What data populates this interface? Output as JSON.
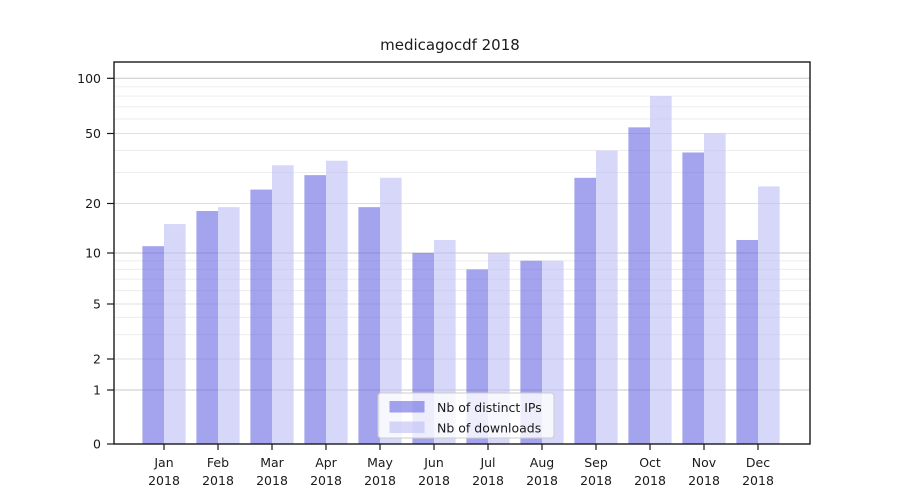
{
  "title": "medicagocdf 2018",
  "chart_data": {
    "type": "bar",
    "title": "medicagocdf 2018",
    "categories": [
      "Jan",
      "Feb",
      "Mar",
      "Apr",
      "May",
      "Jun",
      "Jul",
      "Aug",
      "Sep",
      "Oct",
      "Nov",
      "Dec"
    ],
    "x_year_label": "2018",
    "series": [
      {
        "name": "Nb of distinct IPs",
        "color": "rgba(107,107,228,0.62)",
        "values": [
          11,
          18,
          24,
          29,
          19,
          10,
          8,
          9,
          28,
          54,
          39,
          12
        ]
      },
      {
        "name": "Nb of downloads",
        "color": "rgba(190,190,246,0.62)",
        "values": [
          15,
          19,
          33,
          35,
          28,
          12,
          10,
          9,
          40,
          80,
          50,
          25
        ]
      }
    ],
    "y_axis": {
      "scale": "log-like",
      "ticks": [
        100,
        50,
        20,
        10,
        5,
        2,
        1,
        0
      ],
      "minor_gridlines": [
        3,
        4,
        6,
        7,
        8,
        9,
        30,
        40,
        60,
        70,
        80,
        90
      ]
    },
    "legend": {
      "position": "bottom-center",
      "entries": [
        "Nb of distinct IPs",
        "Nb of downloads"
      ]
    },
    "grid": true
  },
  "colors": {
    "bar_ips": "rgba(107,107,228,0.62)",
    "bar_downloads": "rgba(190,190,246,0.62)",
    "gridline_decade": "#c8c8c8",
    "gridline_mid": "#dfdfdf",
    "gridline_minor": "#ededed",
    "axis": "#1a1a1a",
    "legend_border": "#cccccc",
    "legend_bg": "rgba(255,255,255,0.8)"
  }
}
